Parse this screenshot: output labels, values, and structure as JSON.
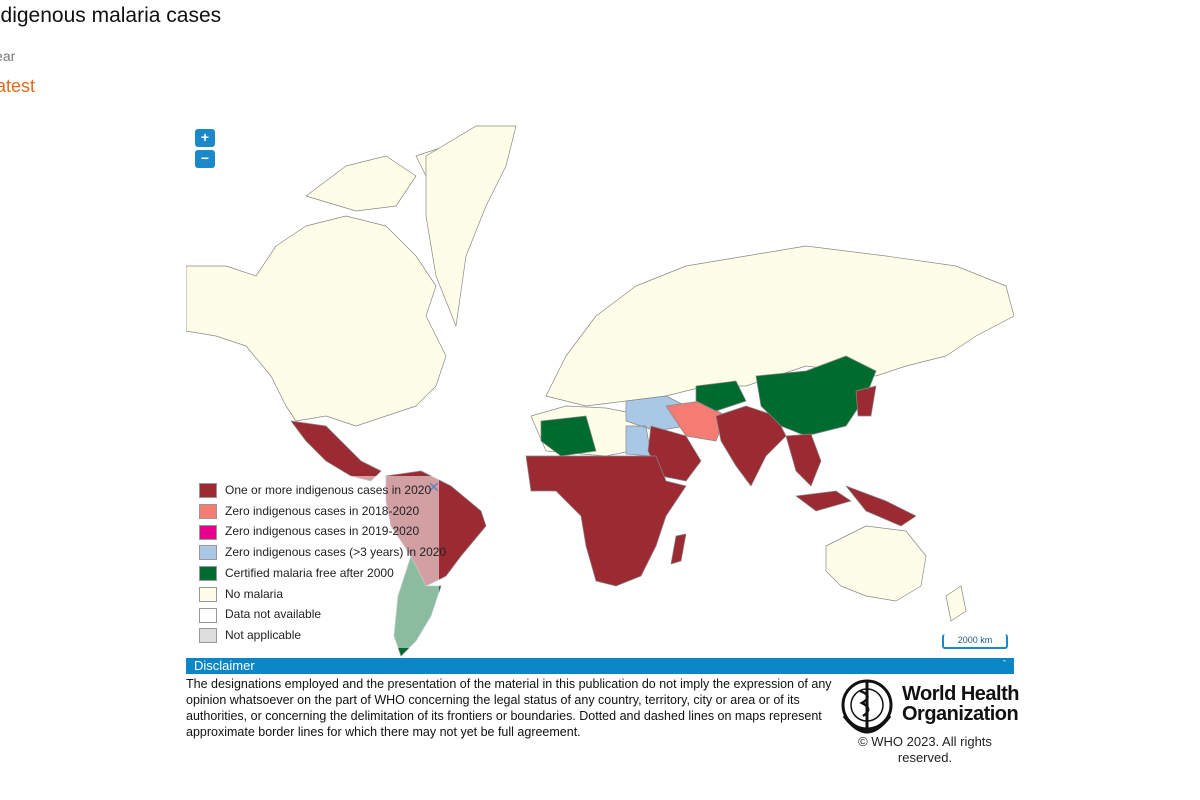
{
  "header": {
    "title": "Indigenous malaria cases",
    "filter_label": "Year",
    "filter_value": "Latest"
  },
  "map": {
    "zoom_in": "+",
    "zoom_out": "−",
    "scale": "2000 km"
  },
  "legend": {
    "close": "✕",
    "items": [
      {
        "label": "One or more indigenous cases in 2020",
        "color": "#9b2a33"
      },
      {
        "label": "Zero indigenous cases in 2018-2020",
        "color": "#f47c72"
      },
      {
        "label": "Zero indigenous cases in 2019-2020",
        "color": "#e8008a"
      },
      {
        "label": "Zero indigenous cases (>3 years) in 2020",
        "color": "#a9c8e6"
      },
      {
        "label": "Certified malaria free after 2000",
        "color": "#006b2e"
      },
      {
        "label": "No malaria",
        "color": "#fefee8"
      },
      {
        "label": "Data not available",
        "color": "#ffffff"
      },
      {
        "label": "Not applicable",
        "color": "#dddddd"
      }
    ]
  },
  "disclaimer": {
    "title": "Disclaimer",
    "toggle": "ˆ",
    "text": "The designations employed and the presentation of the material in this publication do not imply the expression of any opinion whatsoever on the part of WHO concerning the legal status of any country, territory, city or area or of its authorities, or concerning the delimitation of its frontiers or boundaries. Dotted and dashed lines on maps represent approximate border lines for which there may not yet be full agreement."
  },
  "footer": {
    "org_line1": "World Health",
    "org_line2": "Organization",
    "copyright": "© WHO 2023. All rights reserved."
  }
}
